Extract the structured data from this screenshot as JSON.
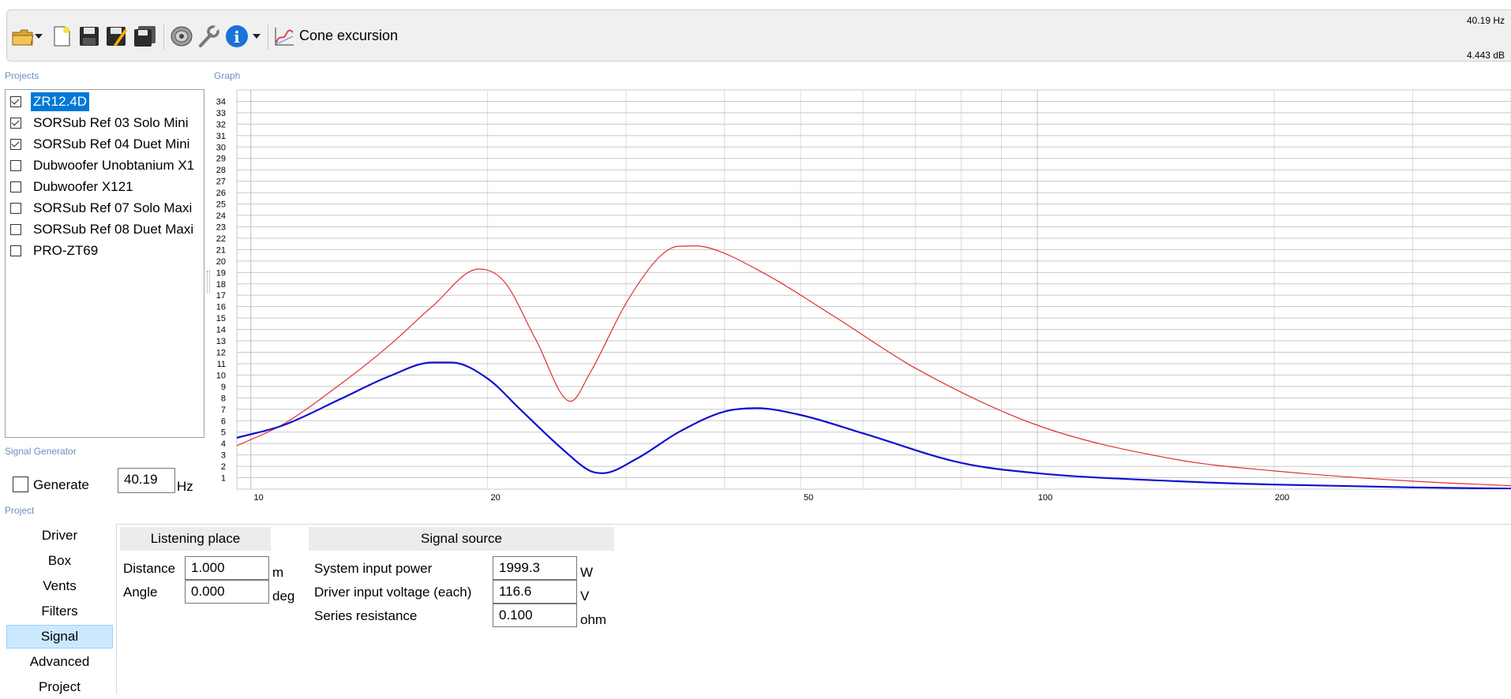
{
  "toolbar": {
    "icons": [
      "open-folder-icon",
      "dropdown-arrow-icon",
      "new-document-icon",
      "save-icon",
      "save-as-icon",
      "save-all-icon",
      "speaker-driver-icon",
      "wrench-icon",
      "info-icon",
      "dropdown-arrow-icon",
      "graph-icon"
    ],
    "graph_title": "Cone excursion"
  },
  "readout": {
    "frequency": "40.19 Hz",
    "level": "4.443 dB"
  },
  "labels": {
    "projects": "Projects",
    "graph": "Graph",
    "signal_generator": "Signal Generator",
    "project": "Project"
  },
  "projects": [
    {
      "name": "ZR12.4D",
      "checked": true,
      "selected": true
    },
    {
      "name": "SORSub Ref 03 Solo Mini",
      "checked": true
    },
    {
      "name": "SORSub Ref 04 Duet Mini",
      "checked": true
    },
    {
      "name": "Dubwoofer Unobtanium X1",
      "checked": false
    },
    {
      "name": "Dubwoofer X121",
      "checked": false
    },
    {
      "name": "SORSub Ref 07 Solo Maxi",
      "checked": false
    },
    {
      "name": "SORSub Ref 08 Duet Maxi",
      "checked": false
    },
    {
      "name": "PRO-ZT69",
      "checked": false
    }
  ],
  "signal_generator": {
    "generate_label": "Generate",
    "frequency": "40.19",
    "unit": "Hz",
    "checked": false
  },
  "nav": {
    "items": [
      "Driver",
      "Box",
      "Vents",
      "Filters",
      "Signal",
      "Advanced",
      "Project"
    ],
    "active": "Signal"
  },
  "listening_place": {
    "title": "Listening place",
    "distance": {
      "label": "Distance",
      "value": "1.000",
      "unit": "m"
    },
    "angle": {
      "label": "Angle",
      "value": "0.000",
      "unit": "deg"
    }
  },
  "signal_source": {
    "title": "Signal source",
    "power": {
      "label": "System input power",
      "value": "1999.3",
      "unit": "W"
    },
    "voltage": {
      "label": "Driver input voltage (each)",
      "value": "116.6",
      "unit": "V"
    },
    "resistance": {
      "label": "Series resistance",
      "value": "0.100",
      "unit": "ohm"
    }
  },
  "chart_data": {
    "type": "line",
    "xscale": "log",
    "xlim": [
      9.6,
      400
    ],
    "ylim": [
      0,
      35
    ],
    "x_ticks": [
      10,
      20,
      50,
      100,
      200
    ],
    "y_ticks": [
      1,
      2,
      3,
      4,
      5,
      6,
      7,
      8,
      9,
      10,
      11,
      12,
      13,
      14,
      15,
      16,
      17,
      18,
      19,
      20,
      21,
      22,
      23,
      24,
      25,
      26,
      27,
      28,
      29,
      30,
      31,
      32,
      33,
      34
    ],
    "grid": true,
    "series": [
      {
        "color": "#e03030",
        "x": [
          9.6,
          11,
          13,
          15,
          17,
          19.5,
          21,
          23,
          25.5,
          27,
          30,
          33,
          35,
          38,
          45,
          55,
          70,
          100,
          150,
          200,
          300,
          400
        ],
        "y": [
          3.8,
          5.7,
          9.2,
          12.6,
          16,
          19.3,
          18.2,
          13.2,
          7.7,
          10.2,
          16.3,
          20.3,
          21.3,
          21.2,
          18.9,
          15.2,
          10.6,
          5.6,
          2.6,
          1.6,
          0.7,
          0.3
        ]
      },
      {
        "color": "#1010d0",
        "x": [
          9.6,
          11,
          13,
          15,
          17,
          18,
          20,
          22,
          25,
          27,
          28,
          31,
          35,
          40,
          44,
          50,
          60,
          80,
          100,
          150,
          200,
          300,
          400
        ],
        "y": [
          4.5,
          5.6,
          7.9,
          9.9,
          11.1,
          11.1,
          9.7,
          7.0,
          3.4,
          1.6,
          1.4,
          2.7,
          5.0,
          6.8,
          7.1,
          6.5,
          4.9,
          2.3,
          1.4,
          0.7,
          0.4,
          0.15,
          0.05
        ]
      }
    ]
  }
}
